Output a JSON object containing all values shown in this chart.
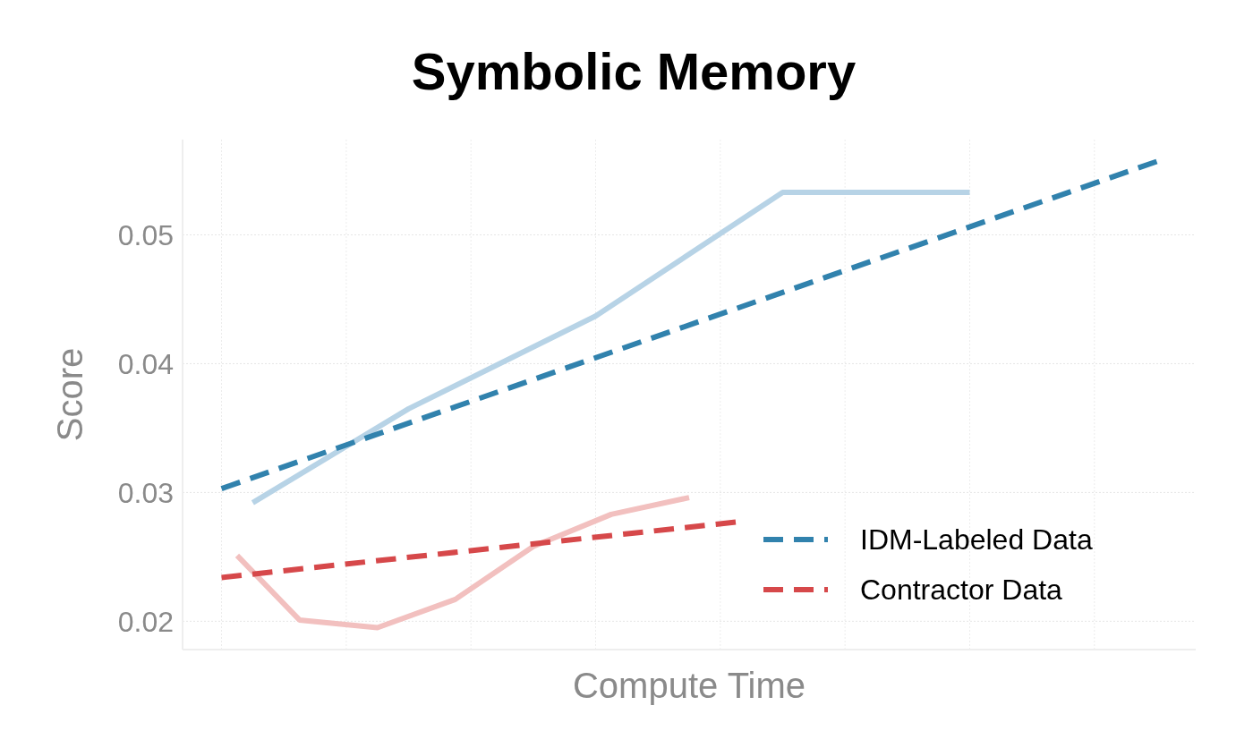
{
  "chart_data": {
    "type": "line",
    "title": "Symbolic Memory",
    "xlabel": "Compute Time",
    "ylabel": "Score",
    "categories": [
      null,
      null,
      null,
      null,
      null,
      null,
      null,
      null,
      null,
      null,
      null,
      null,
      null,
      null,
      null,
      null,
      null,
      null,
      null,
      null,
      null,
      null,
      null,
      null,
      null,
      null,
      null,
      null,
      null,
      null,
      null,
      null,
      null,
      null,
      null,
      null,
      null,
      null,
      null,
      null,
      null,
      null,
      null,
      null,
      null,
      null,
      null,
      null,
      null,
      null,
      null,
      null,
      null,
      null,
      null,
      null,
      null,
      null,
      null,
      null,
      null,
      null,
      null,
      null,
      null
    ],
    "ylim": [
      0.0178,
      0.0574
    ],
    "yticks": [
      0.02,
      0.03,
      0.04,
      0.05
    ],
    "grid": true,
    "legend": "bottom right",
    "marker": "none",
    "tick_labels": "y",
    "series": [
      {
        "color": "#b7d3e6",
        "line_style": "solid",
        "values": [
          null,
          null,
          null,
          null,
          0.0292,
          null,
          null,
          null,
          null,
          null,
          null,
          null,
          null,
          null,
          0.0365,
          null,
          null,
          null,
          null,
          null,
          null,
          null,
          null,
          null,
          null,
          null,
          0.0437,
          null,
          null,
          null,
          null,
          null,
          null,
          null,
          null,
          null,
          null,
          null,
          0.0533,
          null,
          null,
          null,
          null,
          null,
          null,
          null,
          null,
          null,
          null,
          null,
          0.0533,
          null,
          null,
          null,
          null,
          null,
          null,
          null,
          null,
          null,
          null,
          null,
          null,
          null,
          null
        ]
      },
      {
        "name": "IDM-Labeled Data",
        "color": "#3182ad",
        "line_style": "dashed",
        "values": [
          null,
          null,
          0.0303,
          null,
          null,
          null,
          null,
          null,
          null,
          null,
          null,
          null,
          null,
          null,
          null,
          null,
          null,
          null,
          null,
          null,
          null,
          null,
          null,
          null,
          null,
          null,
          null,
          null,
          null,
          null,
          null,
          null,
          null,
          null,
          null,
          null,
          null,
          null,
          null,
          null,
          null,
          null,
          null,
          null,
          null,
          null,
          null,
          null,
          null,
          null,
          null,
          null,
          null,
          null,
          null,
          null,
          null,
          null,
          null,
          null,
          null,
          null,
          0.0557,
          null,
          null
        ]
      },
      {
        "color": "#f2c0bf",
        "line_style": "solid",
        "values": [
          null,
          null,
          null,
          0.0251,
          null,
          null,
          null,
          0.0201,
          null,
          null,
          null,
          null,
          0.0195,
          null,
          null,
          null,
          null,
          0.0217,
          null,
          null,
          null,
          null,
          0.0258,
          null,
          null,
          null,
          null,
          0.0283,
          null,
          null,
          null,
          null,
          0.0296,
          null,
          null,
          null,
          null,
          null,
          null,
          null,
          null,
          null,
          null,
          null,
          null,
          null,
          null,
          null,
          null,
          null,
          null,
          null,
          null,
          null,
          null,
          null,
          null,
          null,
          null,
          null,
          null,
          null,
          null,
          null,
          null
        ]
      },
      {
        "name": "Contractor Data",
        "color": "#d6484a",
        "line_style": "dashed",
        "values": [
          null,
          null,
          0.0234,
          null,
          null,
          null,
          null,
          null,
          null,
          null,
          null,
          null,
          null,
          null,
          null,
          null,
          null,
          null,
          null,
          null,
          null,
          null,
          null,
          null,
          null,
          null,
          null,
          null,
          null,
          null,
          null,
          null,
          null,
          null,
          null,
          0.0277,
          null,
          null,
          null,
          null,
          null,
          null,
          null,
          null,
          null,
          null,
          null,
          null,
          null,
          null,
          null,
          null,
          null,
          null,
          null,
          null,
          null,
          null,
          null,
          null,
          null,
          null,
          null,
          null,
          null
        ]
      }
    ]
  }
}
